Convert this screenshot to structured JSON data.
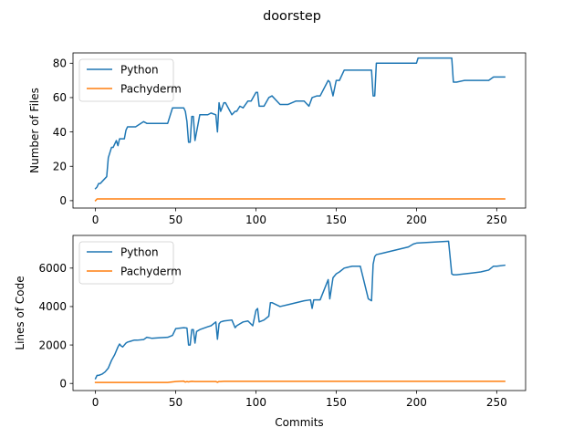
{
  "chart_data": [
    {
      "type": "line",
      "title": "doorstep",
      "xlabel": "",
      "ylabel": "Number of Files",
      "xlim": [
        -14,
        268
      ],
      "ylim": [
        -4.3,
        86.0
      ],
      "xticks": [
        0,
        50,
        100,
        150,
        200,
        250
      ],
      "yticks": [
        0,
        20,
        40,
        60,
        80
      ],
      "legend": "upper-left",
      "grid": false,
      "series": [
        {
          "name": "Python",
          "color": "#1f77b4",
          "x": [
            0,
            1,
            2,
            3,
            4,
            5,
            6,
            7,
            8,
            9,
            10,
            11,
            12,
            13,
            14,
            15,
            16,
            17,
            18,
            19,
            20,
            21,
            22,
            25,
            30,
            32,
            35,
            40,
            45,
            48,
            50,
            53,
            55,
            56,
            57,
            58,
            59,
            60,
            61,
            62,
            65,
            70,
            72,
            75,
            76,
            77,
            78,
            80,
            81,
            85,
            87,
            88,
            90,
            92,
            95,
            97,
            100,
            101,
            102,
            105,
            108,
            110,
            115,
            120,
            125,
            130,
            133,
            135,
            138,
            140,
            145,
            146,
            148,
            150,
            152,
            155,
            160,
            165,
            170,
            172,
            173,
            174,
            175,
            180,
            185,
            190,
            195,
            200,
            201,
            205,
            210,
            215,
            220,
            222,
            223,
            225,
            230,
            235,
            240,
            245,
            248,
            250,
            255
          ],
          "y": [
            7,
            8,
            10,
            10,
            11,
            12,
            13,
            14,
            25,
            28,
            31,
            31,
            33,
            35,
            32,
            36,
            36,
            36,
            36,
            41,
            43,
            43,
            43,
            43,
            46,
            45,
            45,
            45,
            45,
            54,
            54,
            54,
            54,
            52,
            46,
            34,
            34,
            49,
            49,
            35,
            50,
            50,
            51,
            50,
            40,
            57,
            52,
            57,
            57,
            50,
            52,
            52,
            55,
            54,
            58,
            58,
            63,
            63,
            55,
            55,
            60,
            61,
            56,
            56,
            58,
            58,
            55,
            60,
            61,
            61,
            70,
            69,
            61,
            70,
            70,
            76,
            76,
            76,
            76,
            76,
            61,
            61,
            80,
            80,
            80,
            80,
            80,
            80,
            83,
            83,
            83,
            83,
            83,
            83,
            69,
            69,
            70,
            70,
            70,
            70,
            72,
            72,
            72
          ]
        },
        {
          "name": "Pachyderm",
          "color": "#ff7f0e",
          "x": [
            0,
            1,
            2,
            255
          ],
          "y": [
            0,
            1,
            1,
            1
          ]
        }
      ]
    },
    {
      "type": "line",
      "title": "",
      "xlabel": "Commits",
      "ylabel": "Lines of Code",
      "xlim": [
        -14,
        268
      ],
      "ylim": [
        -370,
        7700
      ],
      "xticks": [
        0,
        50,
        100,
        150,
        200,
        250
      ],
      "yticks": [
        0,
        2000,
        4000,
        6000
      ],
      "legend": "upper-left",
      "grid": false,
      "series": [
        {
          "name": "Python",
          "color": "#1f77b4",
          "x": [
            0,
            1,
            2,
            4,
            6,
            8,
            10,
            12,
            14,
            15,
            16,
            17,
            18,
            19,
            20,
            22,
            24,
            26,
            30,
            32,
            35,
            40,
            45,
            48,
            50,
            55,
            57,
            58,
            59,
            60,
            61,
            62,
            63,
            65,
            70,
            72,
            75,
            76,
            77,
            78,
            80,
            85,
            87,
            88,
            90,
            92,
            95,
            98,
            100,
            101,
            102,
            105,
            108,
            109,
            110,
            115,
            120,
            125,
            130,
            134,
            135,
            136,
            140,
            145,
            146,
            148,
            150,
            152,
            155,
            160,
            165,
            170,
            172,
            173,
            174,
            175,
            180,
            185,
            190,
            195,
            198,
            200,
            210,
            220,
            222,
            223,
            225,
            230,
            235,
            240,
            245,
            248,
            250,
            255
          ],
          "y": [
            250,
            420,
            420,
            480,
            600,
            800,
            1200,
            1500,
            1900,
            2050,
            1950,
            1900,
            2000,
            2100,
            2150,
            2200,
            2250,
            2250,
            2280,
            2400,
            2350,
            2380,
            2400,
            2500,
            2850,
            2900,
            2880,
            2000,
            2000,
            2800,
            2800,
            2100,
            2700,
            2800,
            2950,
            3000,
            3200,
            2300,
            3100,
            3200,
            3250,
            3300,
            2900,
            3000,
            3100,
            3200,
            3250,
            3000,
            3800,
            3900,
            3200,
            3300,
            3500,
            4200,
            4200,
            4000,
            4100,
            4200,
            4300,
            4350,
            3900,
            4350,
            4350,
            5400,
            4400,
            5500,
            5700,
            5800,
            6000,
            6100,
            6100,
            4400,
            4300,
            6200,
            6600,
            6700,
            6800,
            6900,
            7000,
            7100,
            7250,
            7300,
            7350,
            7400,
            5700,
            5650,
            5650,
            5700,
            5750,
            5800,
            5900,
            6100,
            6100,
            6150
          ]
        },
        {
          "name": "Pachyderm",
          "color": "#ff7f0e",
          "x": [
            0,
            45,
            50,
            55,
            56,
            57,
            58,
            59,
            60,
            62,
            75,
            76,
            77,
            78,
            80,
            255
          ],
          "y": [
            50,
            50,
            100,
            120,
            70,
            100,
            80,
            100,
            110,
            100,
            100,
            60,
            100,
            100,
            110,
            110
          ]
        }
      ]
    }
  ]
}
